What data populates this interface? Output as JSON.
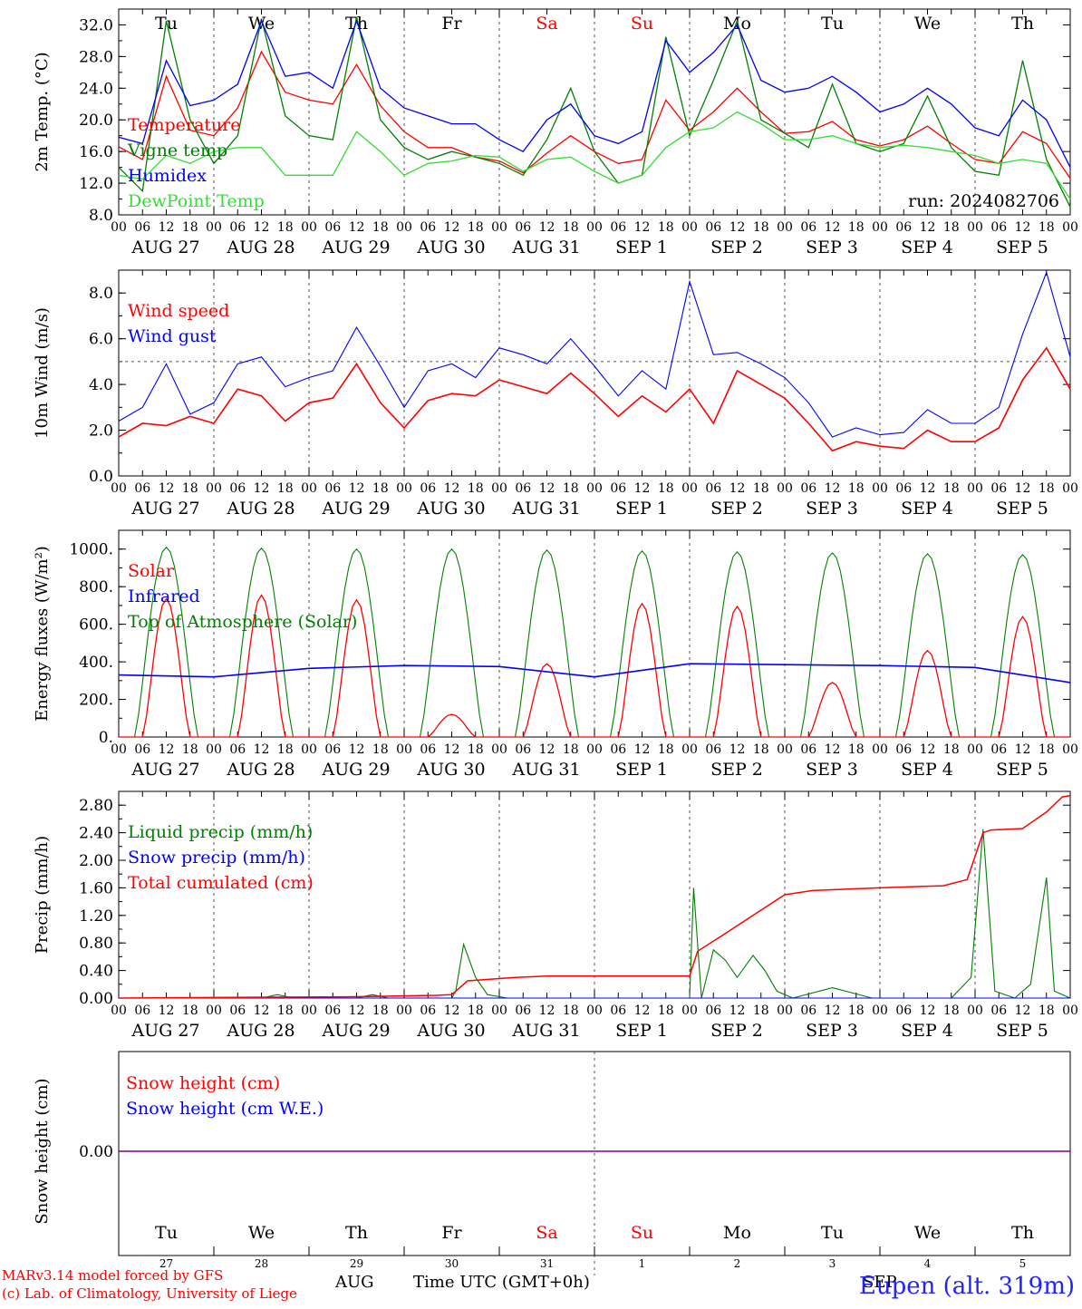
{
  "colors": {
    "red": "#ff0000",
    "green": "#008000",
    "blue": "#0000ff",
    "lime": "#33dd33",
    "purple": "#800080",
    "grid": "#555555",
    "sunday": "#ff0000"
  },
  "x_ticks_hours": [
    "00",
    "06",
    "12",
    "18"
  ],
  "x_days": [
    "AUG 27",
    "AUG 28",
    "AUG 29",
    "AUG 30",
    "AUG 31",
    "SEP 1",
    "SEP 2",
    "SEP 3",
    "SEP 4",
    "SEP 5"
  ],
  "x_end_tick": "00",
  "weekdays": [
    {
      "name": "Tu",
      "red": false
    },
    {
      "name": "We",
      "red": false
    },
    {
      "name": "Th",
      "red": false
    },
    {
      "name": "Fr",
      "red": false
    },
    {
      "name": "Sa",
      "red": true
    },
    {
      "name": "Su",
      "red": true
    },
    {
      "name": "Mo",
      "red": false
    },
    {
      "name": "Tu",
      "red": false
    },
    {
      "name": "We",
      "red": false
    },
    {
      "name": "Th",
      "red": false
    }
  ],
  "daynums": [
    "27",
    "28",
    "29",
    "30",
    "31",
    "1",
    "2",
    "3",
    "4",
    "5"
  ],
  "footer": {
    "month_aug": "AUG",
    "month_sep": "SEP",
    "time_label": "Time UTC (GMT+0h)",
    "credit1": "MARv3.14 model forced by GFS",
    "credit2": "(c) Lab. of Climatology, University of Liege",
    "station": "Eupen (alt. 319m)"
  },
  "chart_data": [
    {
      "type": "line",
      "ylabel": "2m Temp. (°C)",
      "ylim": [
        8,
        34
      ],
      "yticks": [
        "8.0",
        "12.0",
        "16.0",
        "20.0",
        "24.0",
        "28.0",
        "32.0"
      ],
      "annotation": "run: 2024082706",
      "x_hours": [
        0,
        6,
        12,
        18,
        24,
        30,
        36,
        42,
        48,
        54,
        60,
        66,
        72,
        78,
        84,
        90,
        96,
        102,
        108,
        114,
        120,
        126,
        132,
        138,
        144,
        150,
        156,
        162,
        168,
        174,
        180,
        186,
        192,
        198,
        204,
        210,
        216
      ],
      "series": [
        {
          "name": "Temperature",
          "color": "#ff0000",
          "values": [
            16.6,
            15,
            25.5,
            18.7,
            18,
            21.5,
            28.6,
            23.5,
            22.5,
            22,
            27,
            21.8,
            18.5,
            16.5,
            16.5,
            15.3,
            14.8,
            13.3,
            15.8,
            18,
            16,
            14.5,
            15,
            22.5,
            18.7,
            21,
            24,
            21,
            18.3,
            18.5,
            19.8,
            17.5,
            16.7,
            17.5,
            19.2,
            17,
            16
          ],
          "tail": [
            15,
            14.5,
            18.5,
            17,
            12.6
          ]
        },
        {
          "name": "Vigne temp",
          "color": "#008000",
          "values": [
            14,
            11,
            32.5,
            20,
            14.5,
            18,
            32.8,
            20.5,
            18,
            17.5,
            33,
            20,
            16.5,
            15,
            16,
            15.3,
            14.5,
            13,
            17.5,
            24,
            16,
            12,
            13,
            30.5,
            18,
            25,
            32.5,
            20,
            18.3,
            16.5,
            24.5,
            17,
            16,
            17,
            23,
            16.5,
            16
          ],
          "tail": [
            13.5,
            13,
            27.5,
            15,
            9
          ]
        },
        {
          "name": "Humidex",
          "color": "#0000ff",
          "values": [
            17.8,
            17,
            27.5,
            21.8,
            22.5,
            24.5,
            32.5,
            25.5,
            26,
            24,
            32.5,
            24,
            21.5,
            20.5,
            19.5,
            19.5,
            17.5,
            16,
            20,
            22,
            18,
            17,
            18.5,
            30,
            26,
            28.5,
            32,
            25,
            23.5,
            24,
            25.5,
            23.5,
            21,
            22,
            24,
            22,
            20
          ],
          "tail": [
            19,
            18,
            22.5,
            20,
            14
          ]
        },
        {
          "name": "DewPoint Temp",
          "color": "#33dd33",
          "values": [
            13,
            12.5,
            15.5,
            14.5,
            16,
            16.5,
            16.5,
            13,
            13,
            13,
            18.5,
            16,
            13,
            14.5,
            14.8,
            15.5,
            15.3,
            13.5,
            15,
            15.3,
            13.5,
            12,
            13,
            16.5,
            18.5,
            19,
            21,
            19.5,
            17.5,
            17.5,
            18,
            17,
            16.5,
            16.8,
            16.5,
            16,
            15.5
          ],
          "tail": [
            15.5,
            14.5,
            15,
            14.5,
            10
          ]
        }
      ]
    },
    {
      "type": "line",
      "ylabel": "10m Wind (m/s)",
      "ylim": [
        0,
        9
      ],
      "yticks": [
        "0.0",
        "2.0",
        "4.0",
        "6.0",
        "8.0"
      ],
      "reference_line": 5,
      "x_hours": [
        0,
        6,
        12,
        18,
        24,
        30,
        36,
        42,
        48,
        54,
        60,
        66,
        72,
        78,
        84,
        90,
        96,
        102,
        108,
        114,
        120,
        126,
        132,
        138,
        144,
        150,
        156,
        162,
        168,
        174,
        180,
        186,
        192,
        198,
        204,
        210,
        216,
        222,
        228,
        234,
        240
      ],
      "series": [
        {
          "name": "Wind speed",
          "color": "#ff0000",
          "values": [
            1.7,
            2.3,
            2.2,
            2.6,
            2.3,
            3.8,
            3.5,
            2.4,
            3.2,
            3.4,
            4.9,
            3.2,
            2.1,
            3.3,
            3.6,
            3.5,
            4.2,
            3.9,
            3.6,
            4.5,
            3.6,
            2.6,
            3.5,
            2.8,
            3.8,
            2.3,
            4.6,
            4,
            3.4,
            2.3,
            1.1,
            1.5,
            1.3,
            1.2,
            2,
            1.5,
            1.5,
            2.1,
            4.2,
            5.6,
            3.8
          ]
        },
        {
          "name": "Wind gust",
          "color": "#0000ff",
          "values": [
            2.4,
            3,
            4.9,
            2.7,
            3.2,
            4.9,
            5.2,
            3.9,
            4.3,
            4.6,
            6.5,
            4.8,
            3,
            4.6,
            4.9,
            4.3,
            5.6,
            5.3,
            4.9,
            6,
            4.8,
            3.5,
            4.6,
            3.8,
            8.5,
            5.3,
            5.4,
            4.9,
            4.3,
            3.2,
            1.7,
            2.1,
            1.8,
            1.9,
            2.9,
            2.3,
            2.3,
            3,
            6.2,
            8.9,
            5.2
          ]
        }
      ]
    },
    {
      "type": "line",
      "ylabel": "Energy fluxes (W/m²)",
      "ylim": [
        0,
        1100
      ],
      "yticks": [
        "0.",
        "200.",
        "400.",
        "600.",
        "800.",
        "1000."
      ],
      "x_hours": [
        0,
        24,
        48,
        72,
        96,
        120,
        144,
        168,
        192,
        216,
        240
      ],
      "series": [
        {
          "name": "Solar",
          "color": "#ff0000",
          "daily_peaks": [
            735,
            755,
            730,
            120,
            390,
            710,
            695,
            290,
            460,
            640
          ]
        },
        {
          "name": "Infrared",
          "color": "#0000ff",
          "values": [
            330,
            320,
            365,
            380,
            375,
            320,
            390,
            385,
            380,
            370,
            290
          ]
        },
        {
          "name": "Top of Atmosphere (Solar)",
          "color": "#008000",
          "daily_peaks": [
            1010,
            1005,
            1000,
            1000,
            995,
            990,
            985,
            980,
            975,
            970
          ]
        }
      ]
    },
    {
      "type": "line",
      "ylabel": "Precip (mm/h)",
      "ylim": [
        0,
        3
      ],
      "yticks": [
        "0.00",
        "0.40",
        "0.80",
        "1.20",
        "1.60",
        "2.00",
        "2.40",
        "2.80"
      ],
      "series": [
        {
          "name": "Liquid precip (mm/h)",
          "color": "#008000",
          "points": [
            [
              0,
              0
            ],
            [
              36,
              0
            ],
            [
              40,
              0.05
            ],
            [
              44,
              0
            ],
            [
              60,
              0
            ],
            [
              64,
              0.05
            ],
            [
              68,
              0
            ],
            [
              84,
              0
            ],
            [
              85,
              0.1
            ],
            [
              87,
              0.78
            ],
            [
              90,
              0.3
            ],
            [
              93,
              0.05
            ],
            [
              98,
              0
            ],
            [
              120,
              0
            ],
            [
              144,
              0
            ],
            [
              145,
              1.6
            ],
            [
              147,
              0
            ],
            [
              150,
              0.7
            ],
            [
              153,
              0.55
            ],
            [
              156,
              0.3
            ],
            [
              160,
              0.62
            ],
            [
              163,
              0.4
            ],
            [
              166,
              0.1
            ],
            [
              170,
              0
            ],
            [
              180,
              0.15
            ],
            [
              190,
              0
            ],
            [
              210,
              0
            ],
            [
              215,
              0.3
            ],
            [
              218,
              2.45
            ],
            [
              221,
              0.1
            ],
            [
              226,
              0
            ],
            [
              230,
              0.2
            ],
            [
              234,
              1.75
            ],
            [
              236,
              0.1
            ],
            [
              240,
              0
            ]
          ]
        },
        {
          "name": "Snow precip (mm/h)",
          "color": "#0000ff",
          "points": [
            [
              0,
              0
            ],
            [
              240,
              0
            ]
          ]
        },
        {
          "name": "Total cumulated (cm)",
          "color": "#ff0000",
          "points": [
            [
              0,
              0
            ],
            [
              60,
              0.02
            ],
            [
              80,
              0.04
            ],
            [
              84,
              0.05
            ],
            [
              88,
              0.25
            ],
            [
              100,
              0.3
            ],
            [
              108,
              0.32
            ],
            [
              144,
              0.32
            ],
            [
              146,
              0.68
            ],
            [
              152,
              0.9
            ],
            [
              160,
              1.2
            ],
            [
              168,
              1.5
            ],
            [
              175,
              1.56
            ],
            [
              192,
              1.6
            ],
            [
              208,
              1.63
            ],
            [
              214,
              1.72
            ],
            [
              218,
              2.4
            ],
            [
              220,
              2.44
            ],
            [
              228,
              2.46
            ],
            [
              234,
              2.7
            ],
            [
              238,
              2.92
            ],
            [
              240,
              2.94
            ]
          ]
        }
      ]
    },
    {
      "type": "line",
      "ylabel": "Snow height (cm)",
      "yticks": [
        "0.00"
      ],
      "series": [
        {
          "name": "Snow height (cm)",
          "color": "#ff0000",
          "values": [
            0,
            0
          ]
        },
        {
          "name": "Snow height (cm W.E.)",
          "color": "#0000ff",
          "values": [
            0,
            0
          ]
        }
      ]
    }
  ]
}
